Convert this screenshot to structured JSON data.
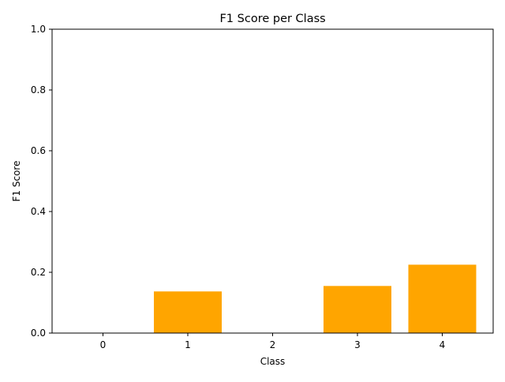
{
  "chart_data": {
    "type": "bar",
    "title": "F1 Score per Class",
    "xlabel": "Class",
    "ylabel": "F1 Score",
    "categories": [
      "0",
      "1",
      "2",
      "3",
      "4"
    ],
    "values": [
      0.0,
      0.137,
      0.0,
      0.155,
      0.225
    ],
    "ylim": [
      0,
      1.0
    ],
    "yticks": [
      "0.0",
      "0.2",
      "0.4",
      "0.6",
      "0.8",
      "1.0"
    ],
    "bar_color": "#FFA500",
    "grid": false,
    "legend": "none"
  }
}
